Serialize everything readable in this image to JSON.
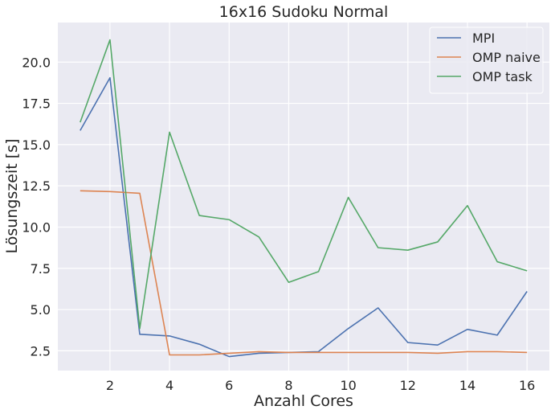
{
  "chart_data": {
    "type": "line",
    "title": "16x16 Sudoku Normal",
    "xlabel": "Anzahl Cores",
    "ylabel": "Lösungszeit [s]",
    "x": [
      1,
      2,
      3,
      4,
      5,
      6,
      7,
      8,
      9,
      10,
      11,
      12,
      13,
      14,
      15,
      16
    ],
    "xlim": [
      0.25,
      16.75
    ],
    "ylim": [
      1.3,
      22.4
    ],
    "xticks": [
      2,
      4,
      6,
      8,
      10,
      12,
      14,
      16
    ],
    "xtick_labels": [
      "2",
      "4",
      "6",
      "8",
      "10",
      "12",
      "14",
      "16"
    ],
    "yticks": [
      2.5,
      5.0,
      7.5,
      10.0,
      12.5,
      15.0,
      17.5,
      20.0
    ],
    "ytick_labels": [
      "2.5",
      "5.0",
      "7.5",
      "10.0",
      "12.5",
      "15.0",
      "17.5",
      "20.0"
    ],
    "grid": true,
    "legend_position": "top-right",
    "series": [
      {
        "name": "MPI",
        "color": "#4c72b0",
        "values": [
          15.85,
          19.05,
          3.5,
          3.4,
          2.9,
          2.15,
          2.35,
          2.4,
          2.45,
          3.85,
          5.1,
          3.0,
          2.85,
          3.8,
          3.45,
          6.1
        ]
      },
      {
        "name": "OMP naive",
        "color": "#dd8452",
        "values": [
          12.2,
          12.15,
          12.05,
          2.25,
          2.25,
          2.35,
          2.45,
          2.4,
          2.4,
          2.4,
          2.4,
          2.4,
          2.35,
          2.45,
          2.45,
          2.4
        ]
      },
      {
        "name": "OMP task",
        "color": "#55a868",
        "values": [
          16.35,
          21.35,
          3.85,
          15.75,
          10.7,
          10.45,
          9.4,
          6.65,
          7.3,
          11.8,
          8.75,
          8.6,
          9.1,
          11.3,
          7.9,
          7.35
        ]
      }
    ]
  }
}
